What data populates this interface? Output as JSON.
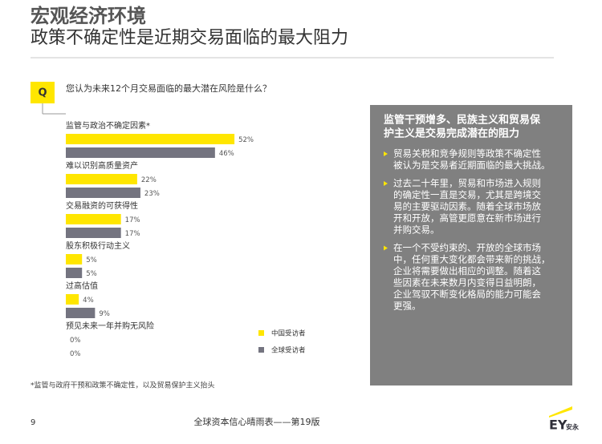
{
  "page": {
    "title": "宏观经济环境",
    "subtitle": "政策不确定性是近期交易面临的最大阻力",
    "q_icon": "Q",
    "question": "您认为未来12个月交易面临的最大潜在风险是什么？",
    "sidebar": {
      "heading": [
        "监管干预增多、民族主义和贸易保",
        "护主义是交易完成潜在的阻力"
      ],
      "bullets": [
        [
          "贸易关税和竞争规则等政策不确定性",
          "被认为是交易者近期面临的最大挑战。"
        ],
        [
          "过去二十年里，贸易和市场进入规则",
          "的确定性一直是交易，尤其是跨境交",
          "易的主要驱动因素。随着全球市场放",
          "开和开放，高管更愿意在新市场进行",
          "并购交易。"
        ],
        [
          "在一个不受约束的、开放的全球市场",
          "中，任何重大变化都会带来新的挑战，",
          "企业将需要做出相应的调整。随着这",
          "些因素在未来数月内变得日益明朗，",
          "企业驾驭不断变化格局的能力可能会",
          "更强。"
        ]
      ]
    },
    "footnote": "*监管与政府干预和政策不确定性，以及贸易保护主义抬头",
    "page_number": "9",
    "footer_title": "全球资本信心晴雨表——第19版",
    "logo": "EY",
    "logo_sub": "安永"
  },
  "chart_data": {
    "type": "bar",
    "orientation": "horizontal",
    "categories": [
      "监管与政治不确定因素*",
      "难以识别高质量资产",
      "交易融资的可获得性",
      "股东积极行动主义",
      "过高估值",
      "预见未来一年并购无风险"
    ],
    "series": [
      {
        "name": "中国受访者",
        "color": "#ffe600",
        "values": [
          52,
          22,
          17,
          5,
          4,
          0
        ],
        "value_labels": [
          "52%",
          "22%",
          "17%",
          "5%",
          "4%",
          "0%"
        ]
      },
      {
        "name": "全球受访者",
        "color": "#747480",
        "values": [
          46,
          23,
          17,
          5,
          9,
          0
        ],
        "value_labels": [
          "46%",
          "23%",
          "17%",
          "5%",
          "9%",
          "0%"
        ]
      }
    ]
  }
}
